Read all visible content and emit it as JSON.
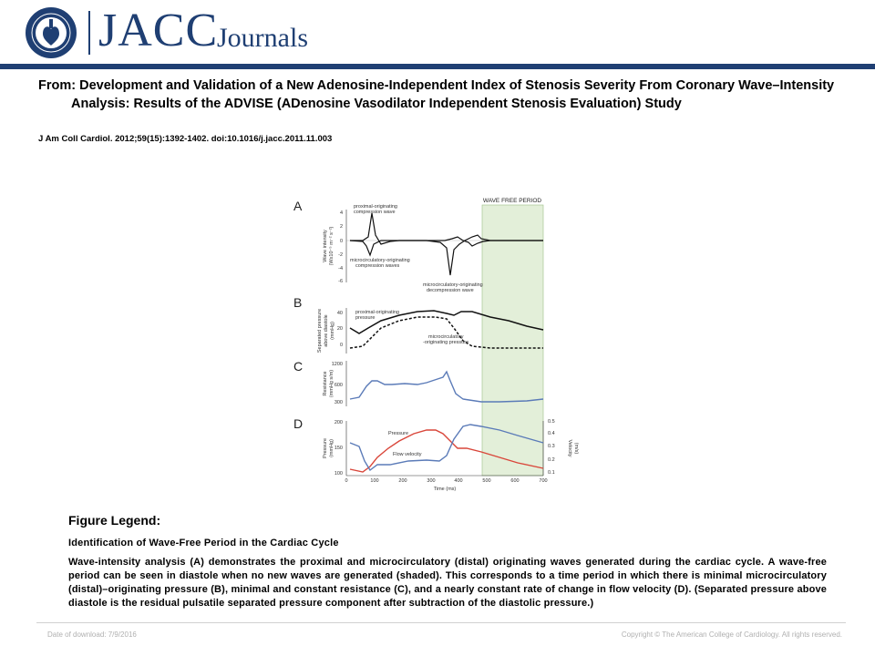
{
  "header": {
    "logo_seal_text": "AMERICAN COLLEGE of CARDIOLOGY",
    "brand": "JACC",
    "brand_suffix": "Journals",
    "colors": {
      "brand": "#1f3f73"
    }
  },
  "article": {
    "title": "From: Development and Validation of a New Adenosine-Independent Index of Stenosis Severity From Coronary Wave–Intensity Analysis: Results of the ADVISE (ADenosine Vasodilator Independent Stenosis Evaluation) Study",
    "citation": "J Am Coll Cardiol. 2012;59(15):1392-1402. doi:10.1016/j.jacc.2011.11.003"
  },
  "figure": {
    "panel_labels": [
      "A",
      "B",
      "C",
      "D"
    ],
    "wave_free_label": "WAVE FREE PERIOD",
    "annotations": {
      "proximal_compression": [
        "proximal-originating",
        "compression wave"
      ],
      "micro_compression": [
        "microcirculatory-originating",
        "compression waves"
      ],
      "micro_decompression": [
        "microcirculatory-originating",
        "decompression wave"
      ],
      "proximal_pressure": [
        "proximal-originating",
        "pressure"
      ],
      "micro_pressure": [
        "microcirculatory",
        "-originating pressure"
      ],
      "pressure_label": "Pressure",
      "flow_velocity_label": "Flow velocity"
    },
    "axis_labels": {
      "a_y": [
        "Wave intensity",
        "(Wx10⁻⁵ m⁻² s⁻²)"
      ],
      "b_y": [
        "Separated pressure",
        "above diastole",
        "(mmHg)"
      ],
      "c_y": [
        "Resistance",
        "(mmHg s/m)"
      ],
      "d_y": [
        "Pressure",
        "(mmHg)"
      ],
      "d_y2": [
        "Velocity",
        "(m/s)"
      ],
      "x": "Time (ms)"
    },
    "ticks": {
      "a_y": [
        "4",
        "2",
        "0",
        "-2",
        "-4",
        "-6"
      ],
      "b_y": [
        "40",
        "20",
        "0"
      ],
      "c_y": [
        "1200",
        "600",
        "300"
      ],
      "d_y": [
        "200",
        "150",
        "100"
      ],
      "d_y2": [
        "0.5",
        "0.4",
        "0.3",
        "0.2",
        "0.1"
      ],
      "x": [
        "0",
        "100",
        "200",
        "300",
        "400",
        "500",
        "600",
        "700"
      ]
    },
    "colors": {
      "wave_free_shade": "#e3efd9",
      "resistance_line": "#5b7bb8",
      "velocity_line": "#5b7bb8",
      "pressure_line": "#d9463a"
    }
  },
  "legend": {
    "heading": "Figure Legend:",
    "subheading": "Identification of Wave-Free Period in the Cardiac Cycle",
    "body": "Wave-intensity analysis (A) demonstrates the proximal and microcirculatory (distal) originating waves generated during the cardiac cycle. A wave-free period can be seen in diastole when no new waves are generated (shaded). This corresponds to a time period in which there is minimal microcirculatory (distal)–originating pressure (B), minimal and constant resistance (C), and a nearly constant rate of change in flow velocity (D). (Separated pressure above diastole is the residual pulsatile separated pressure component after subtraction of the diastolic pressure.)"
  },
  "footer": {
    "download": "Date of download: 7/9/2016",
    "copyright": "Copyright © The American College of Cardiology. All rights reserved."
  }
}
